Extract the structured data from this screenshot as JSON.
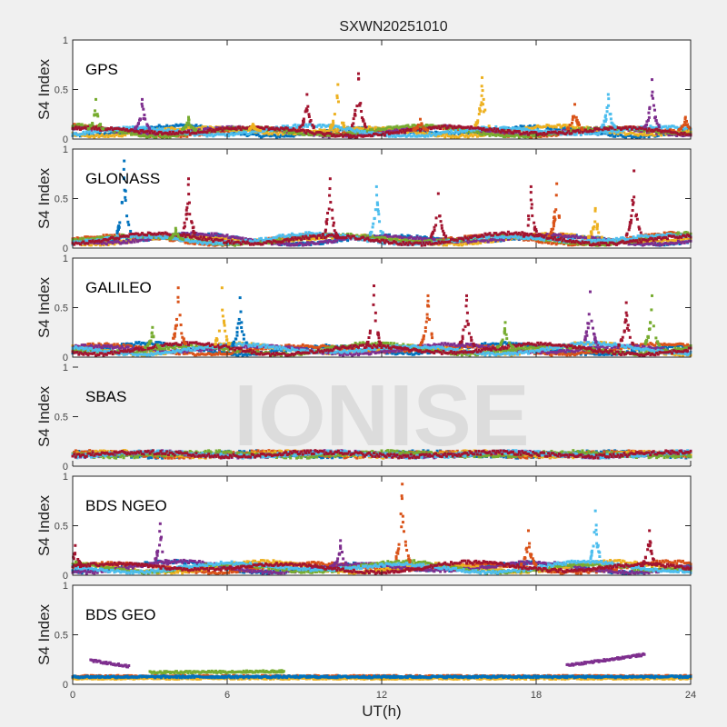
{
  "chart_data": {
    "type": "scatter",
    "title": "SXWN20251010",
    "xlabel": "UT(h)",
    "ylabel": "S4 Index",
    "xlim": [
      0,
      24
    ],
    "ylim": [
      0,
      1
    ],
    "xticks": [
      "0",
      "6",
      "12",
      "18",
      "24"
    ],
    "yticks": [
      "0",
      "0.5",
      "1"
    ],
    "watermark": "IONISE",
    "colors": [
      "#0072BD",
      "#D95319",
      "#EDB120",
      "#7E2F8E",
      "#77AC30",
      "#4DBEEE",
      "#A2142F"
    ],
    "panels": [
      {
        "label": "GPS",
        "baseline": 0.07,
        "spikes": [
          [
            0.9,
            0.4,
            4
          ],
          [
            2.7,
            0.4,
            3
          ],
          [
            4.5,
            0.22,
            4
          ],
          [
            7.0,
            0.15,
            2
          ],
          [
            9.1,
            0.45,
            6
          ],
          [
            10.3,
            0.55,
            2
          ],
          [
            11.1,
            0.66,
            6
          ],
          [
            13.5,
            0.2,
            1
          ],
          [
            15.9,
            0.62,
            2
          ],
          [
            19.5,
            0.35,
            1
          ],
          [
            20.8,
            0.45,
            5
          ],
          [
            22.5,
            0.6,
            3
          ],
          [
            23.8,
            0.22,
            1
          ]
        ]
      },
      {
        "label": "GLONASS",
        "baseline": 0.08,
        "spikes": [
          [
            2.0,
            0.88,
            0
          ],
          [
            4.0,
            0.2,
            4
          ],
          [
            4.5,
            0.7,
            6
          ],
          [
            10.0,
            0.7,
            6
          ],
          [
            11.8,
            0.62,
            5
          ],
          [
            14.2,
            0.55,
            6
          ],
          [
            17.8,
            0.62,
            6
          ],
          [
            18.8,
            0.65,
            1
          ],
          [
            20.3,
            0.4,
            2
          ],
          [
            21.8,
            0.78,
            6
          ]
        ]
      },
      {
        "label": "GALILEO",
        "baseline": 0.07,
        "spikes": [
          [
            3.1,
            0.3,
            4
          ],
          [
            4.1,
            0.7,
            1
          ],
          [
            5.8,
            0.7,
            2
          ],
          [
            6.5,
            0.6,
            0
          ],
          [
            11.7,
            0.72,
            6
          ],
          [
            13.8,
            0.62,
            1
          ],
          [
            15.3,
            0.62,
            6
          ],
          [
            16.8,
            0.35,
            4
          ],
          [
            20.1,
            0.66,
            3
          ],
          [
            21.5,
            0.55,
            6
          ],
          [
            22.5,
            0.62,
            4
          ]
        ]
      },
      {
        "label": "SBAS",
        "baseline": 0.12,
        "spikes": []
      },
      {
        "label": "BDS NGEO",
        "baseline": 0.07,
        "spikes": [
          [
            0.1,
            0.3,
            6
          ],
          [
            3.4,
            0.52,
            3
          ],
          [
            10.4,
            0.35,
            3
          ],
          [
            12.8,
            0.92,
            1
          ],
          [
            17.7,
            0.45,
            1
          ],
          [
            20.3,
            0.65,
            5
          ],
          [
            22.4,
            0.45,
            6
          ]
        ]
      },
      {
        "label": "BDS GEO",
        "baseline": 0.07,
        "spikes": [],
        "tracks": [
          [
            0.7,
            2.2,
            0.24,
            0.18,
            3
          ],
          [
            19.2,
            22.2,
            0.19,
            0.3,
            3
          ],
          [
            3.0,
            8.2,
            0.12,
            0.13,
            4
          ],
          [
            0,
            24,
            0.08,
            0.08,
            1
          ],
          [
            0,
            24,
            0.06,
            0.06,
            2
          ],
          [
            0,
            24,
            0.075,
            0.075,
            0
          ]
        ]
      }
    ]
  }
}
